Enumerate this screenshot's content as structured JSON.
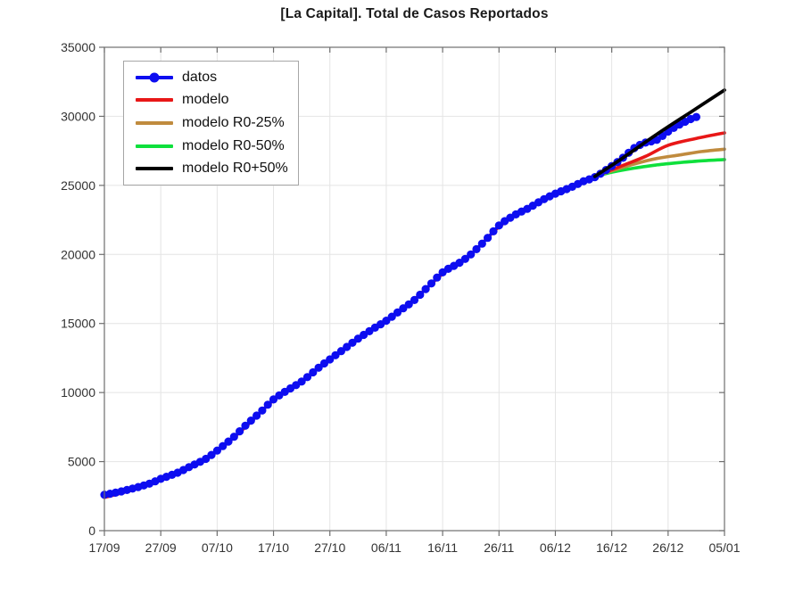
{
  "chart_data": {
    "type": "line",
    "title": "[La Capital]. Total de Casos Reportados",
    "xlabel": "",
    "ylabel": "",
    "x_unit": "days since 17/09",
    "xlim": [
      0,
      110
    ],
    "ylim": [
      0,
      35000
    ],
    "grid": true,
    "x_axis": {
      "tick_days": [
        0,
        10,
        20,
        30,
        40,
        50,
        60,
        70,
        80,
        90,
        100,
        110
      ],
      "tick_labels": [
        "17/09",
        "27/09",
        "07/10",
        "17/10",
        "27/10",
        "06/11",
        "16/11",
        "26/11",
        "06/12",
        "16/12",
        "26/12",
        "05/01"
      ]
    },
    "y_axis": {
      "ticks": [
        0,
        5000,
        10000,
        15000,
        20000,
        25000,
        30000,
        35000
      ],
      "tick_labels": [
        "0",
        "5000",
        "10000",
        "15000",
        "20000",
        "25000",
        "30000",
        "35000"
      ]
    },
    "legend": {
      "position": "top-left",
      "entries": [
        "datos",
        "modelo",
        "modelo R0-25%",
        "modelo R0-50%",
        "modelo R0+50%"
      ]
    },
    "series": [
      {
        "name": "datos",
        "color": "#0d0df0",
        "style": "line+markers",
        "marker": "circle",
        "points": [
          [
            0,
            2600
          ],
          [
            2,
            2750
          ],
          [
            5,
            3050
          ],
          [
            8,
            3400
          ],
          [
            10,
            3750
          ],
          [
            13,
            4200
          ],
          [
            15,
            4600
          ],
          [
            18,
            5200
          ],
          [
            20,
            5800
          ],
          [
            23,
            6800
          ],
          [
            25,
            7600
          ],
          [
            28,
            8700
          ],
          [
            30,
            9500
          ],
          [
            33,
            10300
          ],
          [
            35,
            10800
          ],
          [
            38,
            11800
          ],
          [
            40,
            12400
          ],
          [
            43,
            13300
          ],
          [
            45,
            13900
          ],
          [
            48,
            14700
          ],
          [
            50,
            15200
          ],
          [
            53,
            16100
          ],
          [
            55,
            16700
          ],
          [
            58,
            17900
          ],
          [
            60,
            18700
          ],
          [
            63,
            19400
          ],
          [
            65,
            20000
          ],
          [
            68,
            21200
          ],
          [
            70,
            22100
          ],
          [
            73,
            22900
          ],
          [
            75,
            23300
          ],
          [
            78,
            24000
          ],
          [
            80,
            24400
          ],
          [
            83,
            24900
          ],
          [
            85,
            25300
          ],
          [
            87,
            25600
          ],
          [
            90,
            26400
          ],
          [
            92,
            27000
          ],
          [
            94,
            27700
          ],
          [
            96,
            28100
          ],
          [
            98,
            28300
          ],
          [
            100,
            28900
          ],
          [
            102,
            29400
          ],
          [
            104,
            29800
          ],
          [
            105,
            29950
          ]
        ]
      },
      {
        "name": "modelo",
        "color": "#e81717",
        "style": "line",
        "points": [
          [
            0,
            2400
          ],
          [
            5,
            2950
          ],
          [
            10,
            3650
          ],
          [
            15,
            4550
          ],
          [
            20,
            5750
          ],
          [
            25,
            7500
          ],
          [
            30,
            9450
          ],
          [
            35,
            10850
          ],
          [
            40,
            12400
          ],
          [
            45,
            13900
          ],
          [
            50,
            15250
          ],
          [
            55,
            16750
          ],
          [
            60,
            18600
          ],
          [
            65,
            20000
          ],
          [
            70,
            22000
          ],
          [
            75,
            23300
          ],
          [
            80,
            24350
          ],
          [
            85,
            25250
          ],
          [
            88,
            25800
          ],
          [
            92,
            26450
          ],
          [
            96,
            27100
          ],
          [
            100,
            27900
          ],
          [
            105,
            28400
          ],
          [
            110,
            28800
          ]
        ]
      },
      {
        "name": "modelo R0-25%",
        "color": "#c08b3e",
        "style": "line",
        "points": [
          [
            87,
            25650
          ],
          [
            90,
            26050
          ],
          [
            94,
            26550
          ],
          [
            98,
            26950
          ],
          [
            102,
            27200
          ],
          [
            106,
            27450
          ],
          [
            110,
            27620
          ]
        ]
      },
      {
        "name": "modelo R0-50%",
        "color": "#0fe03c",
        "style": "line",
        "points": [
          [
            87,
            25650
          ],
          [
            90,
            25950
          ],
          [
            94,
            26250
          ],
          [
            98,
            26480
          ],
          [
            102,
            26650
          ],
          [
            106,
            26780
          ],
          [
            110,
            26870
          ]
        ]
      },
      {
        "name": "modelo R0+50%",
        "color": "#000000",
        "style": "line",
        "points": [
          [
            87,
            25650
          ],
          [
            92,
            27000
          ],
          [
            98,
            28700
          ],
          [
            104,
            30300
          ],
          [
            110,
            31900
          ]
        ]
      }
    ]
  },
  "axes_style": {
    "spine_color": "#6e6e6e",
    "grid_color": "#e4e4e4",
    "tick_label_color": "#333333",
    "legend_border_color": "#a6a6a6"
  }
}
